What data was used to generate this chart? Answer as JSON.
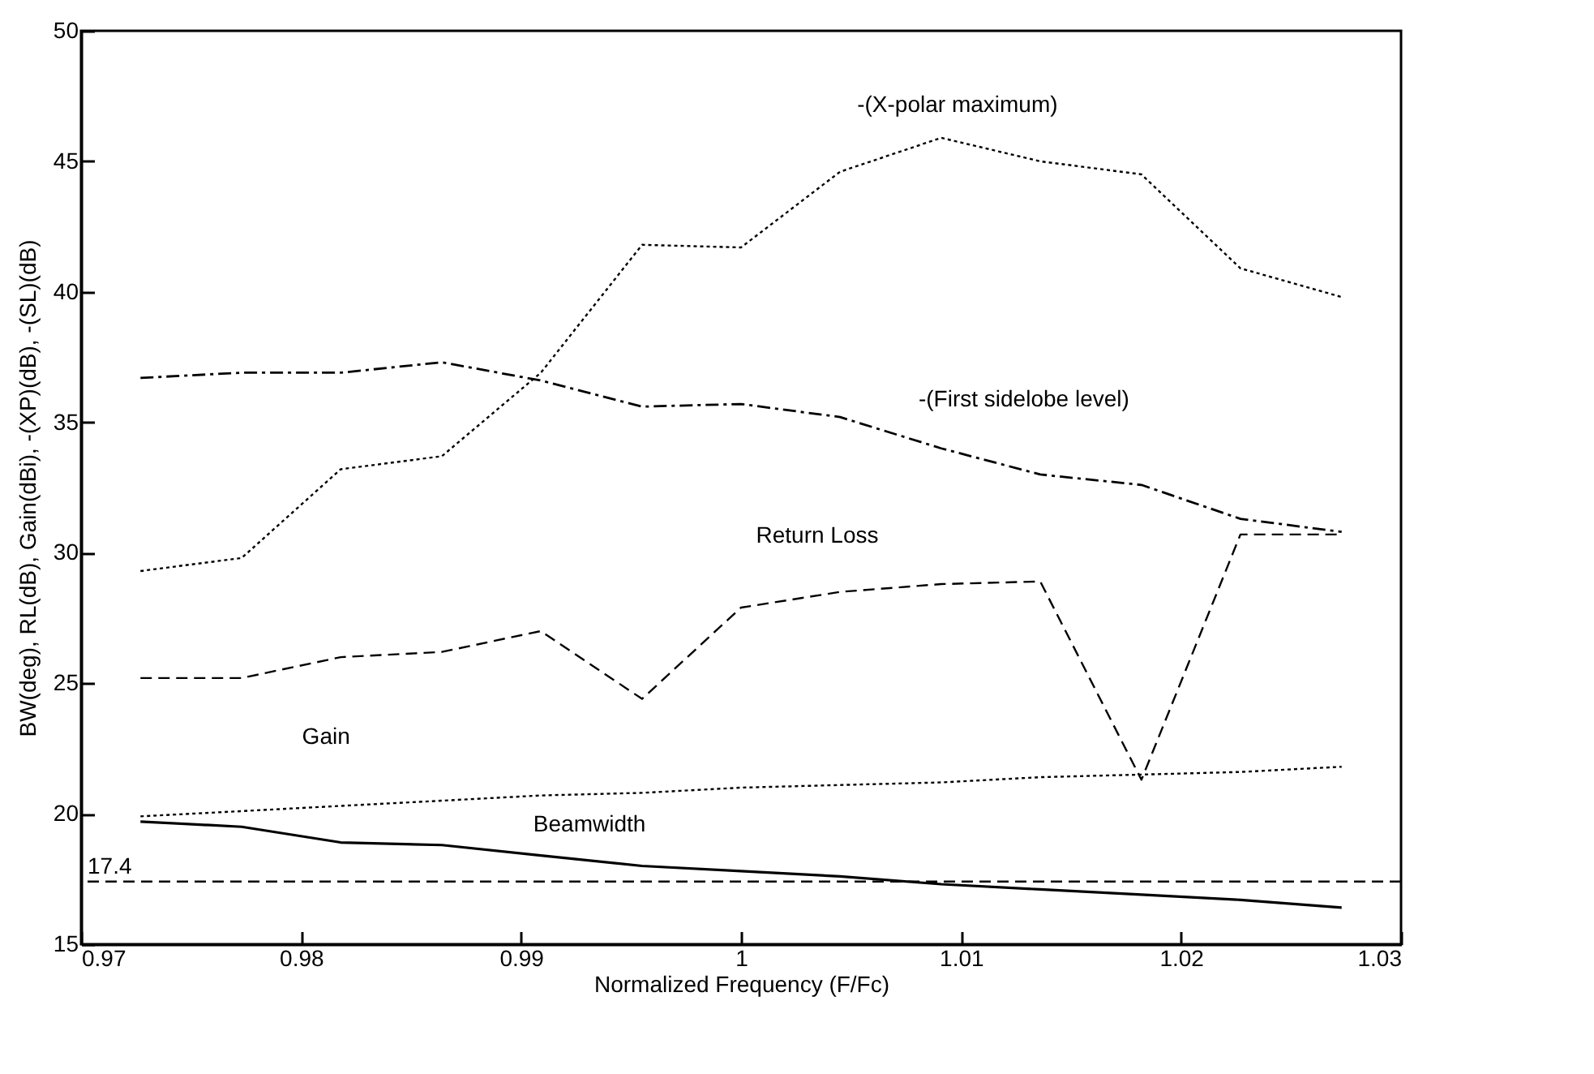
{
  "chart_data": {
    "type": "line",
    "xlabel": "Normalized Frequency (F/Fc)",
    "ylabel": "BW(deg), RL(dB), Gain(dBi), -(XP)(dB), -(SL)(dB)",
    "x": [
      0.9727,
      0.9773,
      0.9818,
      0.9864,
      0.9909,
      0.9955,
      1.0,
      1.0045,
      1.0091,
      1.0136,
      1.0182,
      1.0227,
      1.0273
    ],
    "series": [
      {
        "name": "-(X-polar maximum)",
        "color": "#000000",
        "line_style": "dotted",
        "values": [
          29.3,
          29.8,
          33.2,
          33.7,
          36.9,
          41.8,
          41.7,
          44.6,
          45.9,
          45.0,
          44.5,
          40.9,
          39.8
        ]
      },
      {
        "name": "-(First sidelobe level)",
        "color": "#000000",
        "line_style": "dashdot",
        "values": [
          36.7,
          36.9,
          36.9,
          37.3,
          36.6,
          35.6,
          35.7,
          35.2,
          34.0,
          33.0,
          32.6,
          31.3,
          30.8
        ]
      },
      {
        "name": "Return Loss",
        "color": "#000000",
        "line_style": "dashed",
        "values": [
          25.2,
          25.2,
          26.0,
          26.2,
          27.0,
          24.4,
          27.9,
          28.5,
          28.8,
          28.9,
          21.3,
          30.7,
          30.7
        ]
      },
      {
        "name": "Gain",
        "color": "#000000",
        "line_style": "dotted",
        "values": [
          19.9,
          20.1,
          20.3,
          20.5,
          20.7,
          20.8,
          21.0,
          21.1,
          21.2,
          21.4,
          21.5,
          21.6,
          21.8
        ]
      },
      {
        "name": "Beamwidth",
        "color": "#000000",
        "line_style": "solid",
        "values": [
          19.7,
          19.5,
          18.9,
          18.8,
          18.4,
          18.0,
          17.8,
          17.6,
          17.3,
          17.1,
          16.9,
          16.7,
          16.4
        ]
      }
    ],
    "ref_lines": [
      {
        "axis": "y",
        "value": 17.4,
        "label": "17.4",
        "line_style": "dashed"
      }
    ],
    "xlim": [
      0.97,
      1.03
    ],
    "xticks": [
      0.97,
      0.98,
      0.99,
      1,
      1.01,
      1.02,
      1.03
    ],
    "ylim": [
      15,
      50
    ],
    "yticks": [
      15,
      20,
      25,
      30,
      35,
      40,
      45,
      50
    ],
    "grid": false,
    "marker": "none"
  }
}
